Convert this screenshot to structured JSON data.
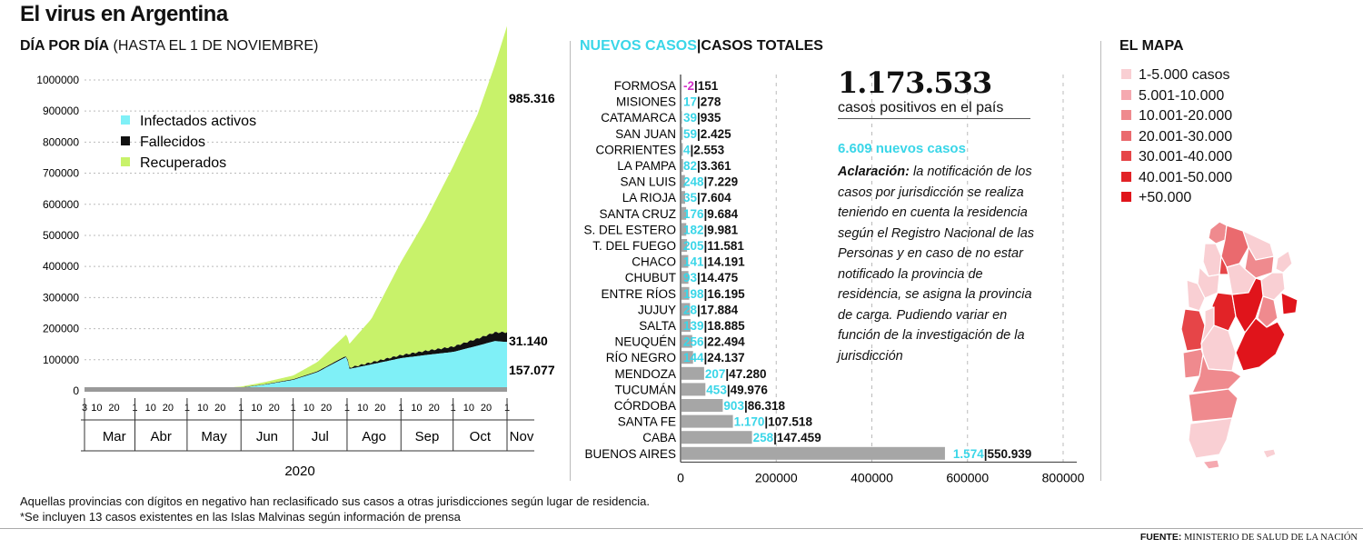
{
  "title": "El virus en Argentina",
  "daily": {
    "heading_bold": "DÍA POR DÍA",
    "heading_rest": " (HASTA EL 1 DE NOVIEMBRE)"
  },
  "provinces_heading": {
    "new": "NUEVOS CASOS",
    "sep": "|",
    "total": "CASOS TOTALES"
  },
  "map_heading": "EL MAPA",
  "map_legend": [
    {
      "label": "1-5.000 casos",
      "color": "#f9cfd3"
    },
    {
      "label": "5.001-10.000",
      "color": "#f5a9b0"
    },
    {
      "label": "10.001-20.000",
      "color": "#ef8a8e"
    },
    {
      "label": "20.001-30.000",
      "color": "#ea6a6e"
    },
    {
      "label": "30.001-40.000",
      "color": "#e64548"
    },
    {
      "label": "40.001-50.000",
      "color": "#e22327"
    },
    {
      "label": "+50.000",
      "color": "#e0141b"
    }
  ],
  "total": {
    "value": "1.173.533",
    "caption": "casos positivos en el país",
    "new_cases": "6.609 nuevos casos",
    "clar_bold": "Aclaración:",
    "clar_text": " la notificación de los casos por jurisdicción se realiza teniendo en cuenta la residencia según el Registro Nacional de las Personas y en caso de no estar notificado la provincia de residencia, se asigna la provincia de carga. Pudiendo variar en función de la investigación de la jurisdicción"
  },
  "footnotes": [
    "Aquellas provincias con dígitos en negativo han reclasificado sus casos a otras jurisdicciones según lugar de residencia.",
    "*Se incluyen 13 casos existentes en las Islas Malvinas según información de prensa"
  ],
  "source_label": "FUENTE:",
  "source_text": " MINISTERIO DE SALUD DE LA NACIÓN",
  "colors": {
    "cyan": "#7ff0f7",
    "cyan_text": "#3ad6e8",
    "green": "#c8f26a",
    "black": "#111111",
    "bar_gray": "#a6a6a6",
    "negative": "#d230c8"
  },
  "chart_data": [
    {
      "type": "area",
      "stacked": true,
      "x_ticks_days": [
        "3",
        "10",
        "20",
        "1",
        "10",
        "20",
        "1",
        "10",
        "20",
        "1",
        "10",
        "20",
        "1",
        "10",
        "20",
        "1",
        "10",
        "20",
        "1",
        "10",
        "20",
        "1",
        "10",
        "20",
        "1"
      ],
      "months": [
        "Mar",
        "Abr",
        "May",
        "Jun",
        "Jul",
        "Ago",
        "Sep",
        "Oct",
        "Nov"
      ],
      "year_label": "2020",
      "ylim": [
        0,
        1000000
      ],
      "y_ticks": [
        "0",
        "100000",
        "200000",
        "300000",
        "400000",
        "500000",
        "600000",
        "700000",
        "800000",
        "900000",
        "1000000"
      ],
      "series": [
        {
          "name": "Infectados activos",
          "color": "#7ff0f7",
          "x": [
            "2020-03-03",
            "2020-04-01",
            "2020-05-01",
            "2020-05-20",
            "2020-06-01",
            "2020-06-15",
            "2020-07-01",
            "2020-07-15",
            "2020-07-25",
            "2020-08-01",
            "2020-08-02",
            "2020-08-15",
            "2020-09-01",
            "2020-09-15",
            "2020-10-01",
            "2020-10-15",
            "2020-10-25",
            "2020-11-01"
          ],
          "values": [
            0,
            1500,
            3000,
            6000,
            10000,
            20000,
            35000,
            60000,
            90000,
            110000,
            70000,
            85000,
            105000,
            115000,
            125000,
            145000,
            160000,
            157077
          ]
        },
        {
          "name": "Fallecidos",
          "color": "#111111",
          "x": [
            "2020-03-03",
            "2020-06-01",
            "2020-08-01",
            "2020-09-01",
            "2020-10-01",
            "2020-10-15",
            "2020-11-01"
          ],
          "values": [
            0,
            600,
            3800,
            9700,
            17000,
            23000,
            31140
          ]
        },
        {
          "name": "Recuperados",
          "color": "#c8f26a",
          "x": [
            "2020-03-03",
            "2020-05-01",
            "2020-06-01",
            "2020-07-01",
            "2020-07-15",
            "2020-08-01",
            "2020-08-15",
            "2020-09-01",
            "2020-09-15",
            "2020-10-01",
            "2020-10-15",
            "2020-10-25",
            "2020-11-01"
          ],
          "values": [
            0,
            1000,
            3000,
            12000,
            30000,
            70000,
            140000,
            300000,
            420000,
            580000,
            720000,
            860000,
            985316
          ]
        }
      ],
      "end_labels": [
        "985.316",
        "31.140",
        "157.077"
      ]
    },
    {
      "type": "bar",
      "orientation": "horizontal",
      "xlim": [
        0,
        800000
      ],
      "x_ticks": [
        "0",
        "200000",
        "400000",
        "600000",
        "800000"
      ],
      "categories": [
        "FORMOSA",
        "MISIONES",
        "CATAMARCA",
        "SAN JUAN",
        "CORRIENTES",
        "LA PAMPA",
        "SAN LUIS",
        "LA RIOJA",
        "SANTA CRUZ",
        "S. DEL ESTERO",
        "T. DEL FUEGO",
        "CHACO",
        "CHUBUT",
        "ENTRE RÍOS",
        "JUJUY",
        "SALTA",
        "NEUQUÉN",
        "RÍO NEGRO",
        "MENDOZA",
        "TUCUMÁN",
        "CÓRDOBA",
        "SANTA FE",
        "CABA",
        "BUENOS AIRES"
      ],
      "values": [
        151,
        278,
        935,
        2425,
        2553,
        3361,
        7229,
        7604,
        9684,
        9981,
        11581,
        14191,
        14475,
        16195,
        17884,
        18885,
        22494,
        24137,
        47280,
        49976,
        86318,
        107518,
        147459,
        550939
      ],
      "new_labels": [
        "-2",
        "17",
        "39",
        "59",
        "4",
        "82",
        "248",
        "35",
        "176",
        "182",
        "205",
        "141",
        "93",
        "198",
        "28",
        "139",
        "256",
        "144",
        "207",
        "453",
        "903",
        "1.170",
        "258",
        "1.574"
      ],
      "total_labels": [
        "151",
        "278",
        "935",
        "2.425",
        "2.553",
        "3.361",
        "7.229",
        "7.604",
        "9.684",
        "9.981",
        "11.581",
        "14.191",
        "14.475",
        "16.195",
        "17.884",
        "18.885",
        "22.494",
        "24.137",
        "47.280",
        "49.976",
        "86.318",
        "107.518",
        "147.459",
        "550.939"
      ]
    }
  ]
}
